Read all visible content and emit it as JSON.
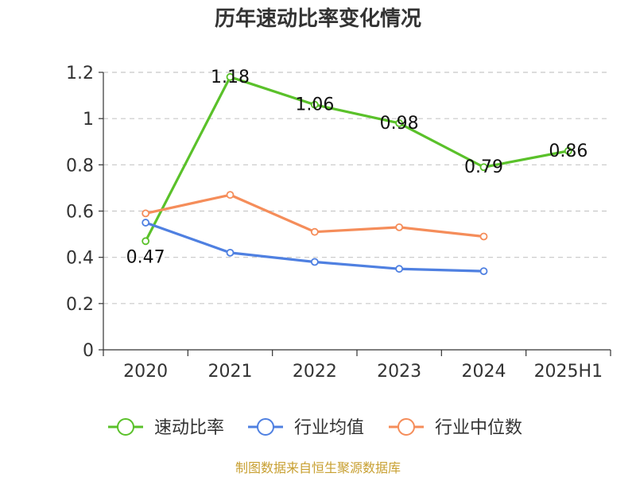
{
  "chart_data": {
    "type": "line",
    "title": "历年速动比率变化情况",
    "xlabel": "",
    "ylabel": "",
    "categories": [
      "2020",
      "2021",
      "2022",
      "2023",
      "2024",
      "2025H1"
    ],
    "ylim": [
      0,
      1.2
    ],
    "yticks": [
      "0",
      "0.2",
      "0.4",
      "0.6",
      "0.8",
      "1",
      "1.2"
    ],
    "grid": true,
    "legend_position": "bottom",
    "series": [
      {
        "name": "速动比率",
        "color": "#5ac12a",
        "values": [
          0.47,
          1.18,
          1.06,
          0.98,
          0.79,
          0.86
        ],
        "labels": [
          "0.47",
          "1.18",
          "1.06",
          "0.98",
          "0.79",
          "0.86"
        ],
        "show_labels": true
      },
      {
        "name": "行业均值",
        "color": "#4f80e1",
        "values": [
          0.55,
          0.42,
          0.38,
          0.35,
          0.34,
          null
        ],
        "show_labels": false
      },
      {
        "name": "行业中位数",
        "color": "#f58d5a",
        "values": [
          0.59,
          0.67,
          0.51,
          0.53,
          0.49,
          null
        ],
        "show_labels": false
      }
    ]
  },
  "source": "制图数据来自恒生聚源数据库"
}
